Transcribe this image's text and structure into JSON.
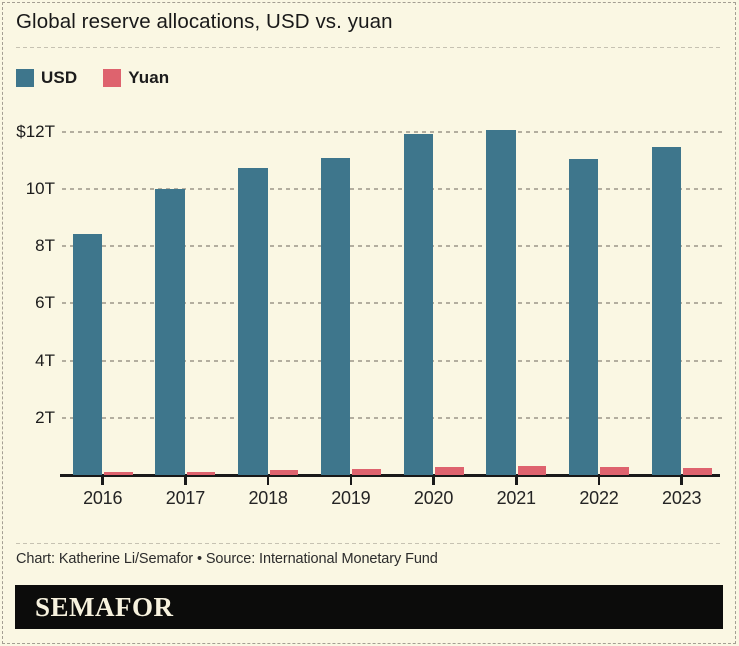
{
  "header": {
    "title": "Global reserve allocations, USD vs. yuan"
  },
  "legend": [
    {
      "label": "USD",
      "color": "#3e768c"
    },
    {
      "label": "Yuan",
      "color": "#de636e"
    }
  ],
  "chart_data": {
    "type": "bar",
    "title": "Global reserve allocations, USD vs. yuan",
    "categories": [
      "2016",
      "2017",
      "2018",
      "2019",
      "2020",
      "2021",
      "2022",
      "2023"
    ],
    "series": [
      {
        "name": "USD",
        "color": "#3e768c",
        "values": [
          8.41,
          10.0,
          10.73,
          11.09,
          11.91,
          12.06,
          11.06,
          11.47
        ]
      },
      {
        "name": "Yuan",
        "color": "#de636e",
        "values": [
          0.09,
          0.12,
          0.19,
          0.21,
          0.27,
          0.32,
          0.28,
          0.24
        ]
      }
    ],
    "unit": "trillions of USD",
    "y_ticks": [
      {
        "value": 2,
        "label": "2T"
      },
      {
        "value": 4,
        "label": "4T"
      },
      {
        "value": 6,
        "label": "6T"
      },
      {
        "value": 8,
        "label": "8T"
      },
      {
        "value": 10,
        "label": "10T"
      },
      {
        "value": 12,
        "label": "$12T"
      }
    ],
    "ylim": [
      0,
      12.5
    ],
    "grid": "dashed horizontal",
    "legend_position": "top-left"
  },
  "footer": {
    "credit": "Chart: Katherine Li/Semafor • Source: International Monetary Fund",
    "brand": "SEMAFOR"
  },
  "colors": {
    "background": "#faf7e3",
    "usd": "#3e768c",
    "yuan": "#de636e",
    "axis": "#191919",
    "gridline": "#b3ae9f",
    "brand_bar": "#0c0c0b",
    "brand_text": "#f7f2de"
  }
}
